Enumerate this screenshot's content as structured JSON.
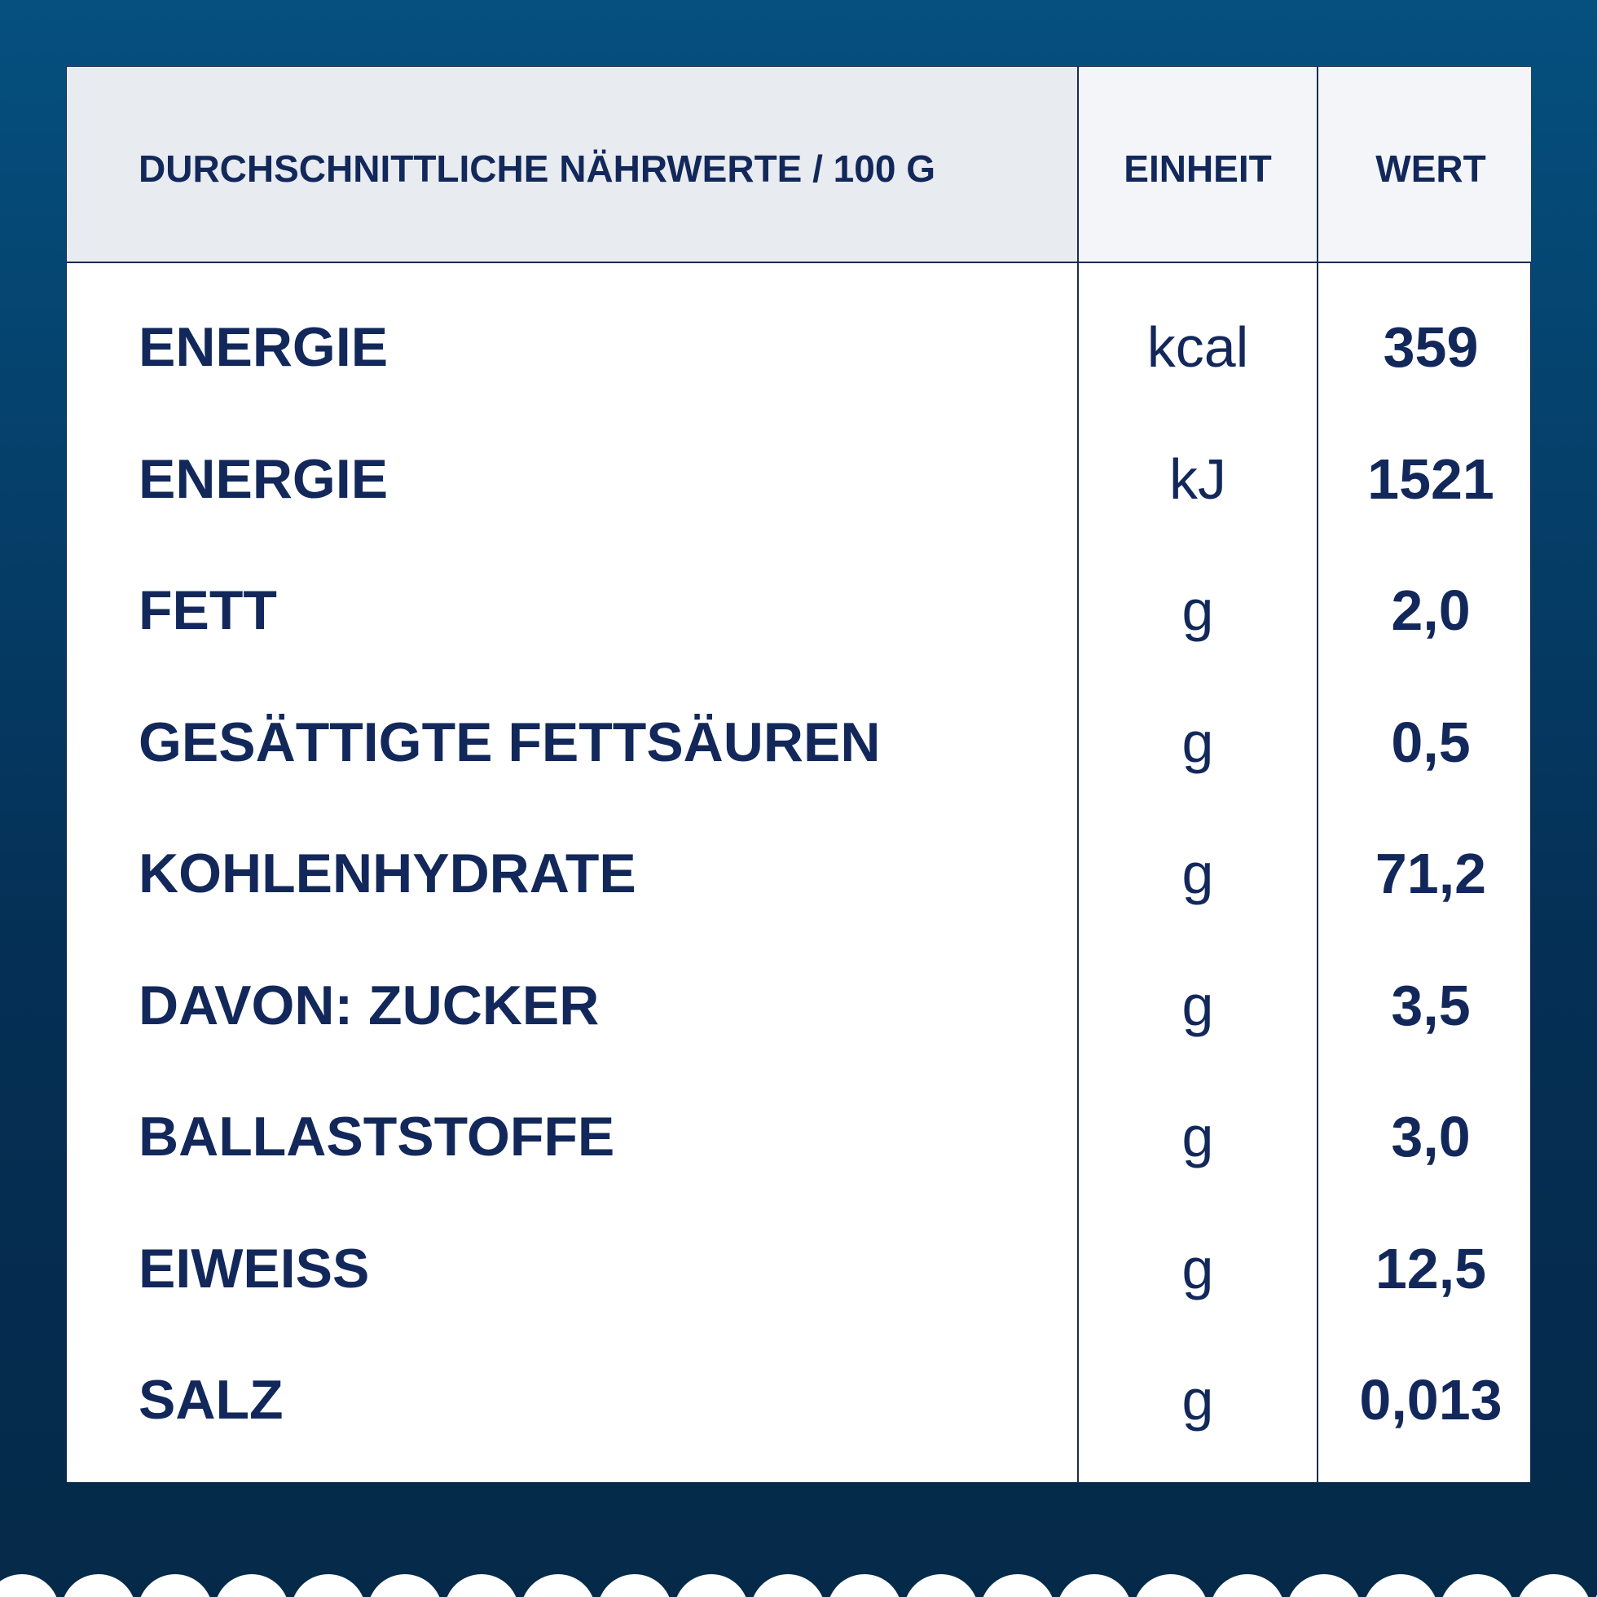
{
  "table": {
    "header": [
      "DURCHSCHNITTLICHE NÄHRWERTE / 100 G",
      "EINHEIT",
      "WERT"
    ],
    "rows": [
      [
        "ENERGIE",
        "kcal",
        "359"
      ],
      [
        "ENERGIE",
        "kJ",
        "1521"
      ],
      [
        "FETT",
        "g",
        "2,0"
      ],
      [
        "GESÄTTIGTE FETTSÄUREN",
        "g",
        "0,5"
      ],
      [
        "KOHLENHYDRATE",
        "g",
        "71,2"
      ],
      [
        "DAVON: ZUCKER",
        "g",
        "3,5"
      ],
      [
        "BALLASTSTOFFE",
        "g",
        "3,0"
      ],
      [
        "EIWEISS",
        "g",
        "12,5"
      ],
      [
        "SALZ",
        "g",
        "0,013"
      ]
    ]
  }
}
